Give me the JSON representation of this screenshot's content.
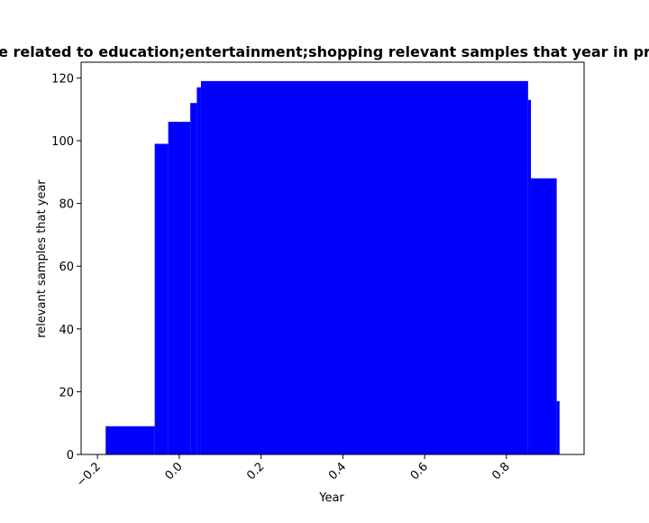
{
  "chart_data": {
    "type": "bar",
    "title": "Number of Apps in the same year related to education;entertainment;shopping relevant samples that year in programming by year",
    "title_visible": "e related to education;entertainment;shopping relevant samples that year in pr",
    "xlabel": "Year",
    "ylabel": "relevant samples that year",
    "xlim": [
      -0.24,
      0.99
    ],
    "ylim": [
      0,
      125
    ],
    "xticks": [
      -0.2,
      0.0,
      0.2,
      0.4,
      0.6,
      0.8
    ],
    "xtick_labels": [
      "−0.2",
      "0.0",
      "0.2",
      "0.4",
      "0.6",
      "0.8"
    ],
    "yticks": [
      0,
      20,
      40,
      60,
      80,
      100,
      120
    ],
    "ytick_labels": [
      "0",
      "20",
      "40",
      "60",
      "80",
      "100",
      "120"
    ],
    "bar_color": "#0000ff",
    "grid": false,
    "bars": [
      {
        "x0": -0.18,
        "x1": -0.06,
        "value": 9
      },
      {
        "x0": -0.06,
        "x1": -0.027,
        "value": 99
      },
      {
        "x0": -0.027,
        "x1": 0.027,
        "value": 106
      },
      {
        "x0": 0.027,
        "x1": 0.043,
        "value": 112
      },
      {
        "x0": 0.043,
        "x1": 0.053,
        "value": 117
      },
      {
        "x0": 0.053,
        "x1": 0.853,
        "value": 119
      },
      {
        "x0": 0.853,
        "x1": 0.86,
        "value": 113
      },
      {
        "x0": 0.86,
        "x1": 0.923,
        "value": 88
      },
      {
        "x0": 0.923,
        "x1": 0.93,
        "value": 17
      }
    ]
  }
}
